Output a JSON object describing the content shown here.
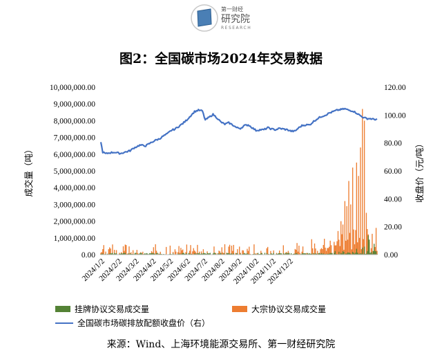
{
  "logo": {
    "brand": "第一财经",
    "cn": "研究院",
    "en": "RESEARCH",
    "icon": "notebook-logo-icon"
  },
  "title": "图2：全国碳市场2024年交易数据",
  "source": "来源：Wind、上海环境能源交易所、第一财经研究院",
  "colors": {
    "line": "#4472C4",
    "listing": "#548235",
    "bulk": "#ED7D31",
    "axis": "#000000"
  },
  "chart_data": {
    "type": "bar+line",
    "y_left": {
      "label": "成交量（吨）",
      "range": [
        0,
        10000000
      ],
      "ticks": [
        "0.00",
        "1,000,000.00",
        "2,000,000.00",
        "3,000,000.00",
        "4,000,000.00",
        "5,000,000.00",
        "6,000,000.00",
        "7,000,000.00",
        "8,000,000.00",
        "9,000,000.00",
        "10,000,000.00"
      ]
    },
    "y_right": {
      "label": "收盘价（元/吨）",
      "range": [
        0,
        120
      ],
      "ticks": [
        "0.00",
        "20.00",
        "40.00",
        "60.00",
        "80.00",
        "100.00",
        "120.00"
      ]
    },
    "x_ticks": [
      "2024/1/2",
      "2024/2/2",
      "2024/3/2",
      "2024/4/2",
      "2024/5/2",
      "2024/6/2",
      "2024/7/2",
      "2024/8/2",
      "2024/9/2",
      "2024/10/2",
      "2024/11/2",
      "2024/12/2"
    ],
    "series": [
      {
        "name": "挂牌协议交易成交量",
        "kind": "bar",
        "axis": "left"
      },
      {
        "name": "大宗协议交易成交量",
        "kind": "bar",
        "axis": "left"
      },
      {
        "name": "全国碳市场碳排放配额收盘价（右）",
        "kind": "line",
        "axis": "right"
      }
    ],
    "price": [
      [
        0,
        80.4
      ],
      [
        2,
        73.5
      ],
      [
        5,
        72.3
      ],
      [
        9,
        73.0
      ],
      [
        14,
        73.4
      ],
      [
        20,
        72.5
      ],
      [
        25,
        73.5
      ],
      [
        30,
        74.5
      ],
      [
        34,
        76.5
      ],
      [
        40,
        78.5
      ],
      [
        46,
        78.0
      ],
      [
        52,
        80.5
      ],
      [
        56,
        82.0
      ],
      [
        60,
        83.0
      ],
      [
        64,
        85.0
      ],
      [
        68,
        86.5
      ],
      [
        72,
        89.0
      ],
      [
        76,
        90.0
      ],
      [
        80,
        92.0
      ],
      [
        84,
        94.0
      ],
      [
        88,
        96.5
      ],
      [
        92,
        99.5
      ],
      [
        96,
        102.5
      ],
      [
        100,
        103.5
      ],
      [
        104,
        103.0
      ],
      [
        107,
        96.5
      ],
      [
        111,
        98.5
      ],
      [
        115,
        100.5
      ],
      [
        119,
        98.0
      ],
      [
        123,
        95.0
      ],
      [
        127,
        93.5
      ],
      [
        131,
        94.5
      ],
      [
        135,
        93.0
      ],
      [
        139,
        91.0
      ],
      [
        143,
        90.5
      ],
      [
        147,
        92.5
      ],
      [
        151,
        93.0
      ],
      [
        155,
        91.0
      ],
      [
        159,
        89.0
      ],
      [
        163,
        89.5
      ],
      [
        167,
        89.5
      ],
      [
        171,
        91.0
      ],
      [
        175,
        90.0
      ],
      [
        179,
        89.5
      ],
      [
        183,
        90.5
      ],
      [
        187,
        90.0
      ],
      [
        191,
        89.5
      ],
      [
        195,
        88.5
      ],
      [
        199,
        88.5
      ],
      [
        202,
        90.5
      ],
      [
        206,
        92.5
      ],
      [
        210,
        93.0
      ],
      [
        214,
        93.0
      ],
      [
        218,
        95.5
      ],
      [
        222,
        97.5
      ],
      [
        226,
        99.0
      ],
      [
        230,
        100.0
      ],
      [
        234,
        101.5
      ],
      [
        238,
        102.5
      ],
      [
        242,
        103.5
      ],
      [
        246,
        104.0
      ],
      [
        250,
        104.5
      ],
      [
        254,
        103.5
      ],
      [
        258,
        103.0
      ],
      [
        262,
        101.5
      ],
      [
        266,
        99.5
      ],
      [
        270,
        98.0
      ],
      [
        273,
        97.5
      ],
      [
        276,
        97.5
      ],
      [
        279,
        97.0
      ],
      [
        283,
        97.0
      ]
    ],
    "bulk_peaks": [
      [
        268,
        8700000
      ],
      [
        270,
        8000000
      ],
      [
        266,
        6400000
      ],
      [
        262,
        5500000
      ],
      [
        258,
        5200000
      ],
      [
        264,
        4700000
      ],
      [
        254,
        4400000
      ],
      [
        256,
        3000000
      ],
      [
        250,
        3200000
      ],
      [
        252,
        2900000
      ],
      [
        272,
        2500000
      ],
      [
        246,
        2000000
      ],
      [
        248,
        1800000
      ]
    ]
  }
}
